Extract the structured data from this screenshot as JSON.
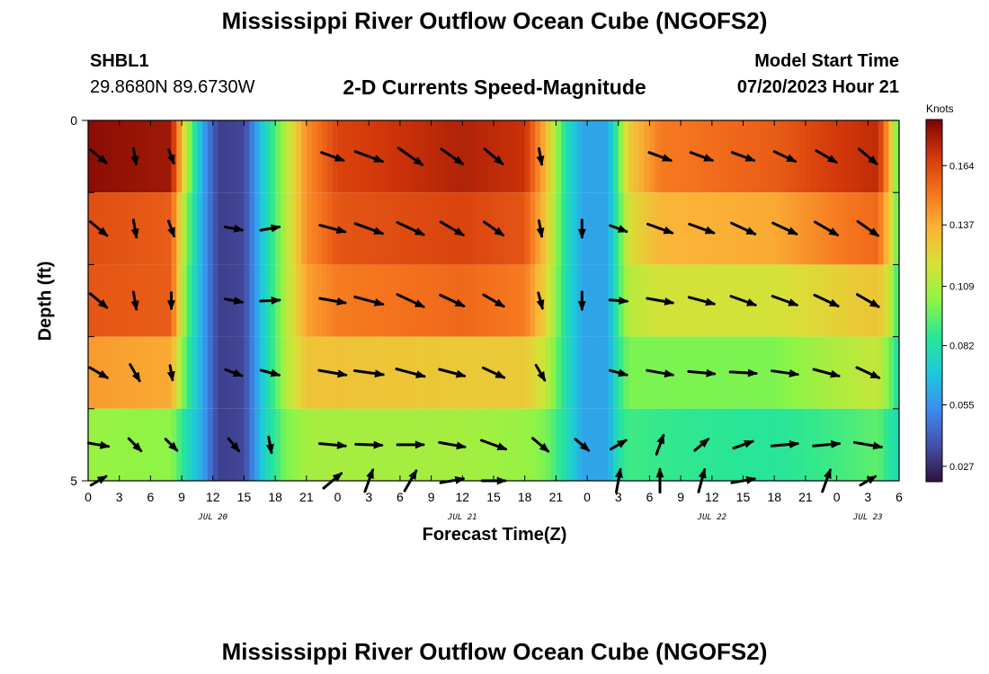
{
  "title": "Mississippi River Outflow Ocean Cube (NGOFS2)",
  "station": {
    "name": "SHBL1",
    "coords": "29.8680N  89.6730W"
  },
  "subtitle": "2-D Currents Speed-Magnitude",
  "model_start": {
    "label": "Model Start Time",
    "value": "07/20/2023 Hour 21"
  },
  "bottom_title": "Mississippi River Outflow Ocean Cube (NGOFS2)",
  "colors": {
    "arrow": "#000000",
    "axis": "#000000"
  },
  "chart_data": {
    "type": "heatmap",
    "title": "2-D Currents Speed-Magnitude",
    "xlabel": "Forecast Time(Z)",
    "ylabel": "Depth (ft)",
    "xlim": [
      0,
      78
    ],
    "ylim": [
      0,
      5
    ],
    "x_tick_values": [
      0,
      3,
      6,
      9,
      12,
      15,
      18,
      21,
      24,
      27,
      30,
      33,
      36,
      39,
      42,
      45,
      48,
      51,
      54,
      57,
      60,
      63,
      66,
      69,
      72,
      75,
      78
    ],
    "x_tick_labels": [
      "0",
      "3",
      "6",
      "9",
      "12",
      "15",
      "18",
      "21",
      "0",
      "3",
      "6",
      "9",
      "12",
      "15",
      "18",
      "21",
      "0",
      "3",
      "6",
      "9",
      "12",
      "15",
      "18",
      "21",
      "0",
      "3",
      "6"
    ],
    "y_tick_labels": [
      "0",
      "5"
    ],
    "day_labels": [
      {
        "label": "JUL 20",
        "hour": 12
      },
      {
        "label": "JUL 21",
        "hour": 36
      },
      {
        "label": "JUL 22",
        "hour": 60
      },
      {
        "label": "JUL 23",
        "hour": 75
      }
    ],
    "colorbar": {
      "label": "Knots",
      "min": 0.02,
      "max": 0.185,
      "ticks": [
        0.027,
        0.055,
        0.082,
        0.109,
        0.137,
        0.164
      ],
      "tick_labels": [
        "0.027",
        "0.055",
        "0.082",
        "0.109",
        "0.137",
        "0.164"
      ]
    },
    "depth_layers": [
      0.0,
      1.0,
      2.0,
      3.0,
      4.0,
      5.0
    ],
    "speed_keyframes": [
      {
        "hour": 0,
        "speeds": [
          0.182,
          0.162,
          0.16,
          0.142,
          0.105,
          0.078
        ]
      },
      {
        "hour": 8,
        "speeds": [
          0.178,
          0.158,
          0.158,
          0.138,
          0.103,
          0.075
        ]
      },
      {
        "hour": 9.5,
        "speeds": [
          0.11,
          0.1,
          0.095,
          0.09,
          0.08,
          0.062
        ]
      },
      {
        "hour": 11,
        "speeds": [
          0.06,
          0.06,
          0.06,
          0.06,
          0.06,
          0.058
        ]
      },
      {
        "hour": 12.5,
        "speeds": [
          0.032,
          0.032,
          0.032,
          0.032,
          0.032,
          0.032
        ]
      },
      {
        "hour": 15,
        "speeds": [
          0.034,
          0.034,
          0.034,
          0.034,
          0.034,
          0.034
        ]
      },
      {
        "hour": 17,
        "speeds": [
          0.075,
          0.075,
          0.075,
          0.075,
          0.075,
          0.07
        ]
      },
      {
        "hour": 19,
        "speeds": [
          0.11,
          0.11,
          0.11,
          0.11,
          0.1,
          0.075
        ]
      },
      {
        "hour": 21,
        "speeds": [
          0.145,
          0.145,
          0.14,
          0.13,
          0.108,
          0.08
        ]
      },
      {
        "hour": 24,
        "speeds": [
          0.165,
          0.16,
          0.15,
          0.13,
          0.108,
          0.082
        ]
      },
      {
        "hour": 36,
        "speeds": [
          0.175,
          0.165,
          0.155,
          0.128,
          0.108,
          0.082
        ]
      },
      {
        "hour": 42,
        "speeds": [
          0.17,
          0.16,
          0.15,
          0.128,
          0.105,
          0.08
        ]
      },
      {
        "hour": 44,
        "speeds": [
          0.135,
          0.13,
          0.125,
          0.115,
          0.1,
          0.078
        ]
      },
      {
        "hour": 46,
        "speeds": [
          0.08,
          0.08,
          0.08,
          0.08,
          0.08,
          0.075
        ]
      },
      {
        "hour": 47.5,
        "speeds": [
          0.06,
          0.06,
          0.06,
          0.06,
          0.06,
          0.06
        ]
      },
      {
        "hour": 50,
        "speeds": [
          0.06,
          0.06,
          0.06,
          0.06,
          0.06,
          0.06
        ]
      },
      {
        "hour": 51,
        "speeds": [
          0.095,
          0.09,
          0.09,
          0.085,
          0.082,
          0.08
        ]
      },
      {
        "hour": 52,
        "speeds": [
          0.128,
          0.12,
          0.112,
          0.1,
          0.09,
          0.082
        ]
      },
      {
        "hour": 55,
        "speeds": [
          0.15,
          0.135,
          0.118,
          0.1,
          0.088,
          0.082
        ]
      },
      {
        "hour": 66,
        "speeds": [
          0.158,
          0.138,
          0.118,
          0.1,
          0.085,
          0.08
        ]
      },
      {
        "hour": 72,
        "speeds": [
          0.168,
          0.15,
          0.125,
          0.11,
          0.09,
          0.082
        ]
      },
      {
        "hour": 76,
        "speeds": [
          0.172,
          0.155,
          0.13,
          0.115,
          0.095,
          0.085
        ]
      },
      {
        "hour": 77,
        "speeds": [
          0.14,
          0.13,
          0.118,
          0.1,
          0.085,
          0.08
        ]
      },
      {
        "hour": 78,
        "speeds": [
          0.09,
          0.09,
          0.085,
          0.08,
          0.078,
          0.075
        ]
      }
    ],
    "arrow_hours": [
      1,
      4.5,
      8,
      14,
      17.5,
      23.5,
      27,
      31,
      35,
      39,
      43.5,
      47.5,
      51,
      55,
      59,
      63,
      67,
      71,
      75
    ],
    "arrow_directions_deg": [
      [
        40,
        80,
        70,
        20,
        15,
        20,
        20,
        35,
        35,
        40,
        80,
        80,
        40,
        20,
        20,
        20,
        25,
        30,
        40
      ],
      [
        40,
        80,
        70,
        10,
        350,
        15,
        20,
        25,
        30,
        35,
        80,
        90,
        20,
        20,
        20,
        25,
        25,
        30,
        35
      ],
      [
        40,
        80,
        90,
        10,
        357,
        10,
        15,
        25,
        25,
        30,
        75,
        90,
        5,
        10,
        15,
        20,
        20,
        25,
        30
      ],
      [
        30,
        60,
        80,
        20,
        15,
        10,
        8,
        15,
        15,
        25,
        60,
        10,
        15,
        10,
        5,
        3,
        8,
        15,
        25
      ],
      [
        10,
        45,
        45,
        50,
        80,
        5,
        2,
        0,
        10,
        20,
        40,
        40,
        330,
        290,
        320,
        340,
        355,
        355,
        10
      ],
      [
        330,
        0,
        0,
        0,
        40,
        320,
        290,
        300,
        350,
        0,
        0,
        0,
        280,
        270,
        285,
        350,
        300,
        290,
        330
      ]
    ],
    "arrow_magnitudes": [
      [
        0.7,
        0.55,
        0.5,
        0.0,
        0.0,
        0.8,
        1.0,
        1.0,
        0.9,
        0.8,
        0.55,
        0.0,
        0.0,
        0.8,
        0.8,
        0.8,
        0.8,
        0.8,
        0.8
      ],
      [
        0.75,
        0.6,
        0.55,
        0.6,
        0.65,
        0.9,
        1.0,
        1.0,
        0.9,
        0.8,
        0.55,
        0.6,
        0.6,
        0.9,
        0.9,
        0.9,
        0.9,
        0.9,
        0.85
      ],
      [
        0.75,
        0.6,
        0.55,
        0.6,
        0.65,
        0.9,
        1.0,
        1.0,
        0.9,
        0.8,
        0.55,
        0.6,
        0.6,
        0.9,
        0.9,
        0.9,
        0.9,
        0.9,
        0.85
      ],
      [
        0.7,
        0.65,
        0.5,
        0.6,
        0.65,
        0.95,
        1.0,
        1.0,
        0.9,
        0.8,
        0.6,
        0.0,
        0.6,
        0.9,
        0.9,
        0.9,
        0.9,
        0.9,
        0.85
      ],
      [
        0.7,
        0.6,
        0.55,
        0.55,
        0.55,
        0.9,
        0.9,
        0.9,
        0.9,
        0.9,
        0.7,
        0.6,
        0.6,
        0.7,
        0.6,
        0.7,
        0.9,
        0.9,
        0.95
      ],
      [
        0.6,
        0.0,
        0.0,
        0.0,
        0.0,
        0.8,
        0.8,
        0.8,
        0.8,
        0.8,
        0.0,
        0.0,
        0.8,
        0.8,
        0.8,
        0.8,
        0.0,
        0.8,
        0.6
      ]
    ]
  }
}
